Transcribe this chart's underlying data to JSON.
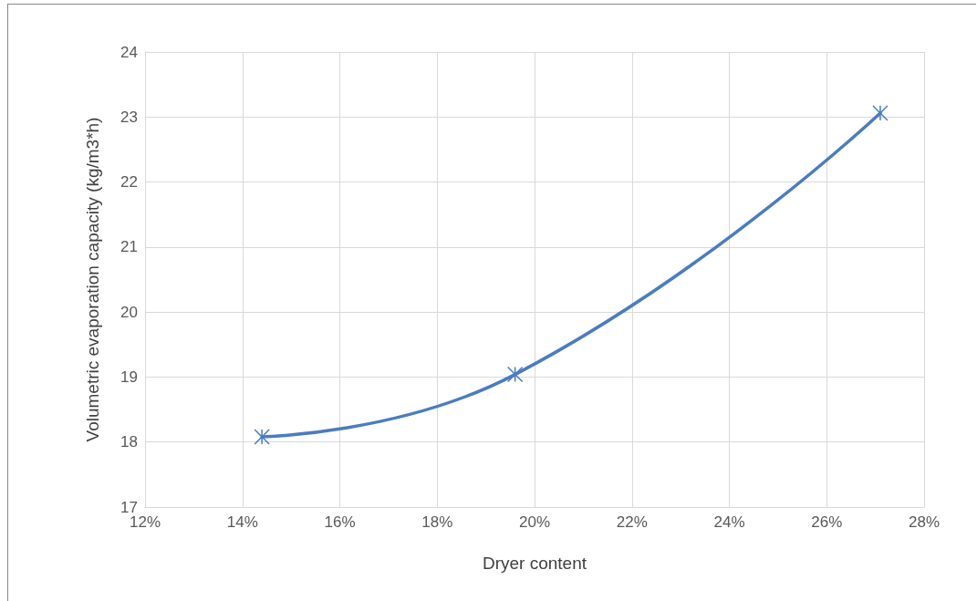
{
  "chart_data": {
    "type": "line",
    "xlabel": "Dryer content",
    "ylabel": "Volumetric evaporation capacity (kg/m3*h)",
    "x": [
      14.4,
      19.6,
      27.1
    ],
    "series": [
      {
        "color": "#4a7cc0",
        "values": [
          18.08,
          19.04,
          23.06
        ]
      }
    ],
    "xlim": [
      12,
      28
    ],
    "xticks": [
      {
        "value": 12,
        "label": "12%"
      },
      {
        "value": 14,
        "label": "14%"
      },
      {
        "value": 16,
        "label": "16%"
      },
      {
        "value": 18,
        "label": "18%"
      },
      {
        "value": 20,
        "label": "20%"
      },
      {
        "value": 22,
        "label": "22%"
      },
      {
        "value": 24,
        "label": "24%"
      },
      {
        "value": 26,
        "label": "26%"
      },
      {
        "value": 28,
        "label": "28%"
      }
    ],
    "ylim": [
      17,
      24
    ],
    "yticks": [
      17,
      18,
      19,
      20,
      21,
      22,
      23,
      24
    ],
    "grid": true,
    "marker": "cross",
    "line_style": "solid"
  }
}
